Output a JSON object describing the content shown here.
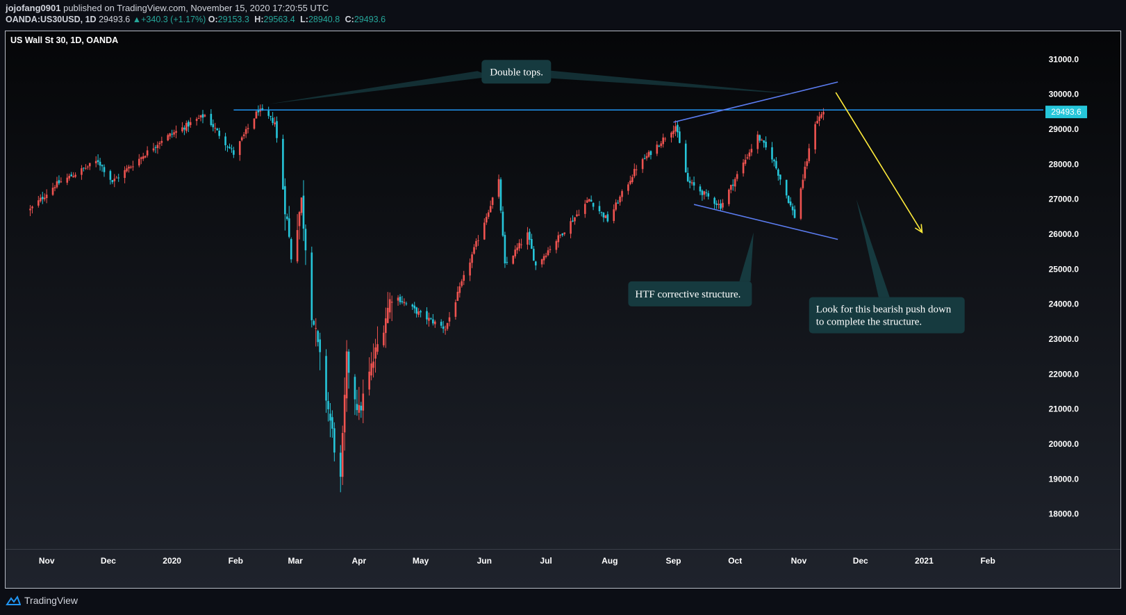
{
  "header": {
    "author": "jojofang0901",
    "published_text": "published on TradingView.com, November 15, 2020 17:20:55 UTC",
    "symbol": "OANDA:US30USD, 1D",
    "price": "29493.6",
    "change": "+340.3 (+1.17%)",
    "open_label": "O:",
    "open": "29153.3",
    "high_label": "H:",
    "high": "29563.4",
    "low_label": "L:",
    "low": "28940.8",
    "close_label": "C:",
    "close": "29493.6"
  },
  "brand": {
    "name": "TradingView",
    "icon": "tradingview-logo-icon"
  },
  "colors": {
    "up": "#ef5350",
    "down": "#26c6da",
    "line": "#2196f3",
    "arrow": "#ffeb3b",
    "callout": "#163a3f"
  },
  "chart_data": {
    "type": "candlestick",
    "title": "US Wall St 30, 1D, OANDA",
    "ylim": [
      17000,
      31800
    ],
    "yticks": [
      "31000.0",
      "30000.0",
      "29000.0",
      "28000.0",
      "27000.0",
      "26000.0",
      "25000.0",
      "24000.0",
      "23000.0",
      "22000.0",
      "21000.0",
      "20000.0",
      "19000.0",
      "18000.0"
    ],
    "xlabels": [
      "Nov",
      "Dec",
      "2020",
      "Feb",
      "Mar",
      "Apr",
      "May",
      "Jun",
      "Jul",
      "Aug",
      "Sep",
      "Oct",
      "Nov",
      "Dec",
      "2021",
      "Feb"
    ],
    "last_price_label": "29493.6",
    "horizontal_line": 29550,
    "anchors": [
      [
        "2019-10-24",
        26700
      ],
      [
        "2019-11-05",
        27400
      ],
      [
        "2019-11-26",
        28100
      ],
      [
        "2019-12-03",
        27500
      ],
      [
        "2019-12-27",
        28700
      ],
      [
        "2020-01-17",
        29400
      ],
      [
        "2020-01-31",
        28300
      ],
      [
        "2020-02-12",
        29550
      ],
      [
        "2020-02-20",
        29200
      ],
      [
        "2020-02-28",
        25400
      ],
      [
        "2020-03-04",
        26950
      ],
      [
        "2020-03-09",
        23800
      ],
      [
        "2020-03-23",
        18900
      ],
      [
        "2020-03-26",
        22400
      ],
      [
        "2020-04-01",
        20900
      ],
      [
        "2020-04-17",
        24300
      ],
      [
        "2020-05-01",
        23700
      ],
      [
        "2020-05-13",
        23300
      ],
      [
        "2020-06-08",
        27500
      ],
      [
        "2020-06-11",
        25100
      ],
      [
        "2020-06-22",
        26000
      ],
      [
        "2020-06-26",
        25100
      ],
      [
        "2020-07-22",
        27000
      ],
      [
        "2020-07-31",
        26400
      ],
      [
        "2020-08-14",
        27900
      ],
      [
        "2020-09-02",
        29100
      ],
      [
        "2020-09-08",
        27500
      ],
      [
        "2020-09-24",
        26800
      ],
      [
        "2020-10-12",
        28800
      ],
      [
        "2020-10-19",
        28200
      ],
      [
        "2020-10-30",
        26500
      ],
      [
        "2020-11-09",
        29200
      ],
      [
        "2020-11-13",
        29493
      ]
    ],
    "annotations": [
      {
        "text": "Double tops."
      },
      {
        "text": "HTF corrective structure."
      },
      {
        "text_lines": [
          "Look for this bearish push down",
          "to complete the structure."
        ]
      }
    ],
    "trendlines": [
      {
        "from": [
          "2020-09-01",
          29200
        ],
        "to": [
          "2020-11-20",
          30350
        ]
      },
      {
        "from": [
          "2020-09-11",
          26850
        ],
        "to": [
          "2020-11-20",
          25850
        ]
      }
    ],
    "projection_arrow": {
      "from": [
        "2020-11-19",
        30050
      ],
      "to": [
        "2020-12-31",
        26050
      ]
    }
  }
}
